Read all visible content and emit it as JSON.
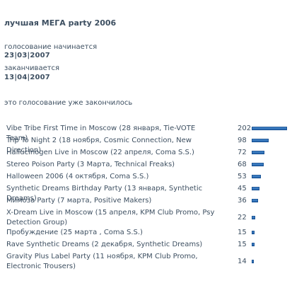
{
  "poll": {
    "title": "лучшая МЕГА party 2006",
    "start_label": "голосование начинается",
    "start_date": "23|03|2007",
    "end_label": "заканчивается",
    "end_date": "13|04|2007",
    "status": "это голосование уже закончилось"
  },
  "results": [
    {
      "name": "Vibe Tribe First Time in Moscow (28 января, Tie-VOTE Team)",
      "votes": 202
    },
    {
      "name": "Trip To Night 2 (18 ноября, Cosmic Connection, New Direction)",
      "votes": 98
    },
    {
      "name": "Hallucinogen Live in Moscow (22 апреля, Coma S.S.)",
      "votes": 72
    },
    {
      "name": "Stereo Poison Party (3 Марта, Technical Freaks)",
      "votes": 68
    },
    {
      "name": "Halloween 2006 (4 октября, Coma S.S.)",
      "votes": 53
    },
    {
      "name": "Synthetic Dreams Birthday Party (13 января, Synthetic Dreams)",
      "votes": 45
    },
    {
      "name": "Мимоза Party (7 марта, Positive Makers)",
      "votes": 36
    },
    {
      "name": "X-Dream Live in Moscow (15 апреля, KPM Club Promo, Psy Detection Group)",
      "votes": 22
    },
    {
      "name": "Пробуждение (25 марта , Coma S.S.)",
      "votes": 15
    },
    {
      "name": "Rave Synthetic Dreams (2 декабря, Synthetic Dreams)",
      "votes": 15
    },
    {
      "name": "Gravity Plus Label Party (11 ноября, KPM Club Promo, Electronic Trousers)",
      "votes": 14
    }
  ],
  "colors": {
    "bar": "#2a6bb5",
    "text": "#3d4f61"
  }
}
